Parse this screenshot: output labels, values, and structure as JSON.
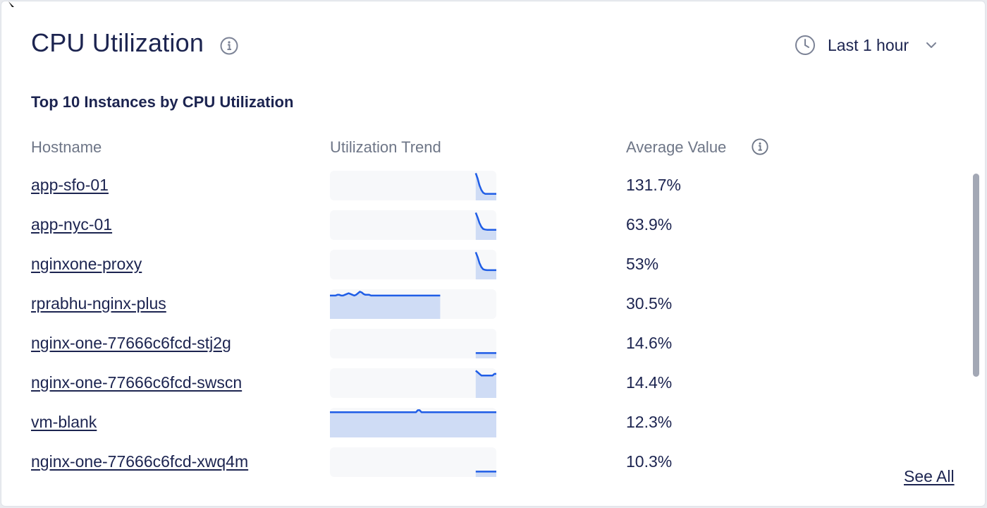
{
  "header": {
    "title": "CPU Utilization",
    "time_range": "Last 1 hour"
  },
  "section": {
    "subtitle": "Top 10 Instances by CPU Utilization"
  },
  "table": {
    "columns": [
      "Hostname",
      "Utilization Trend",
      "Average Value"
    ],
    "rows": [
      {
        "hostname": "app-sfo-01",
        "average": "131.7%",
        "trend": [
          null,
          null,
          null,
          null,
          null,
          null,
          null,
          null,
          null,
          null,
          null,
          null,
          null,
          null,
          null,
          null,
          null,
          null,
          null,
          null,
          null,
          null,
          null,
          null,
          null,
          null,
          null,
          null,
          null,
          null,
          null,
          null,
          null,
          null,
          null,
          null,
          null,
          null,
          null,
          null,
          null,
          null,
          null,
          null,
          null,
          null,
          null,
          null,
          null,
          null,
          null,
          null,
          null,
          null,
          null,
          null,
          null,
          null,
          null,
          null,
          null,
          null,
          null,
          null,
          null,
          null,
          null,
          null,
          null,
          null,
          null,
          null,
          null,
          null,
          null,
          null,
          null,
          null,
          100,
          80,
          55,
          38,
          28,
          24,
          24,
          24,
          24,
          24,
          24,
          24
        ]
      },
      {
        "hostname": "app-nyc-01",
        "average": "63.9%",
        "trend": [
          null,
          null,
          null,
          null,
          null,
          null,
          null,
          null,
          null,
          null,
          null,
          null,
          null,
          null,
          null,
          null,
          null,
          null,
          null,
          null,
          null,
          null,
          null,
          null,
          null,
          null,
          null,
          null,
          null,
          null,
          null,
          null,
          null,
          null,
          null,
          null,
          null,
          null,
          null,
          null,
          null,
          null,
          null,
          null,
          null,
          null,
          null,
          null,
          null,
          null,
          null,
          null,
          null,
          null,
          null,
          null,
          null,
          null,
          null,
          null,
          null,
          null,
          null,
          null,
          null,
          null,
          null,
          null,
          null,
          null,
          null,
          null,
          null,
          null,
          null,
          null,
          null,
          null,
          100,
          82,
          62,
          48,
          40,
          38,
          37,
          37,
          37,
          37,
          37,
          37
        ]
      },
      {
        "hostname": "nginxone-proxy",
        "average": "53%",
        "trend": [
          null,
          null,
          null,
          null,
          null,
          null,
          null,
          null,
          null,
          null,
          null,
          null,
          null,
          null,
          null,
          null,
          null,
          null,
          null,
          null,
          null,
          null,
          null,
          null,
          null,
          null,
          null,
          null,
          null,
          null,
          null,
          null,
          null,
          null,
          null,
          null,
          null,
          null,
          null,
          null,
          null,
          null,
          null,
          null,
          null,
          null,
          null,
          null,
          null,
          null,
          null,
          null,
          null,
          null,
          null,
          null,
          null,
          null,
          null,
          null,
          null,
          null,
          null,
          null,
          null,
          null,
          null,
          null,
          null,
          null,
          null,
          null,
          null,
          null,
          null,
          null,
          null,
          null,
          100,
          82,
          60,
          45,
          37,
          35,
          34,
          34,
          34,
          34,
          34,
          34
        ]
      },
      {
        "hostname": "rprabhu-nginx-plus",
        "average": "30.5%",
        "trend": [
          30,
          30,
          30,
          30,
          31,
          31,
          30,
          30,
          31,
          32,
          33,
          32,
          31,
          30,
          31,
          33,
          35,
          34,
          32,
          31,
          31,
          31,
          30,
          30,
          30,
          30,
          30,
          30,
          30,
          30,
          30,
          30,
          30,
          30,
          30,
          30,
          30,
          30,
          30,
          30,
          30,
          30,
          30,
          30,
          30,
          30,
          30,
          30,
          30,
          30,
          30,
          30,
          30,
          30,
          30,
          30,
          30,
          30,
          30,
          30,
          null,
          null,
          null,
          null,
          null,
          null,
          null,
          null,
          null,
          null,
          null,
          null,
          null,
          null,
          null,
          null,
          null,
          null,
          null,
          null,
          null,
          null,
          null,
          null,
          null,
          null,
          null,
          null,
          null,
          null
        ]
      },
      {
        "hostname": "nginx-one-77666c6fcd-stj2g",
        "average": "14.6%",
        "trend": [
          null,
          null,
          null,
          null,
          null,
          null,
          null,
          null,
          null,
          null,
          null,
          null,
          null,
          null,
          null,
          null,
          null,
          null,
          null,
          null,
          null,
          null,
          null,
          null,
          null,
          null,
          null,
          null,
          null,
          null,
          null,
          null,
          null,
          null,
          null,
          null,
          null,
          null,
          null,
          null,
          null,
          null,
          null,
          null,
          null,
          null,
          null,
          null,
          null,
          null,
          null,
          null,
          null,
          null,
          null,
          null,
          null,
          null,
          null,
          null,
          null,
          null,
          null,
          null,
          null,
          null,
          null,
          null,
          null,
          null,
          null,
          null,
          null,
          null,
          null,
          null,
          null,
          null,
          14,
          14,
          14,
          14,
          14,
          14,
          14,
          14,
          14,
          14,
          14,
          14
        ]
      },
      {
        "hostname": "nginx-one-77666c6fcd-swscn",
        "average": "14.4%",
        "trend": [
          null,
          null,
          null,
          null,
          null,
          null,
          null,
          null,
          null,
          null,
          null,
          null,
          null,
          null,
          null,
          null,
          null,
          null,
          null,
          null,
          null,
          null,
          null,
          null,
          null,
          null,
          null,
          null,
          null,
          null,
          null,
          null,
          null,
          null,
          null,
          null,
          null,
          null,
          null,
          null,
          null,
          null,
          null,
          null,
          null,
          null,
          null,
          null,
          null,
          null,
          null,
          null,
          null,
          null,
          null,
          null,
          null,
          null,
          null,
          null,
          null,
          null,
          null,
          null,
          null,
          null,
          null,
          null,
          null,
          null,
          null,
          null,
          null,
          null,
          null,
          null,
          null,
          null,
          17,
          16,
          15,
          14,
          14,
          14,
          14,
          14,
          14,
          14,
          15,
          15
        ]
      },
      {
        "hostname": "vm-blank",
        "average": "12.3%",
        "trend": [
          12,
          12,
          12,
          12,
          12,
          12,
          12,
          12,
          12,
          12,
          12,
          12,
          12,
          12,
          12,
          12,
          12,
          12,
          12,
          12,
          12,
          12,
          12,
          12,
          12,
          12,
          12,
          12,
          12,
          12,
          12,
          12,
          12,
          12,
          12,
          12,
          12,
          12,
          12,
          12,
          12,
          12,
          12,
          12,
          12,
          12,
          12,
          13,
          13,
          12,
          12,
          12,
          12,
          12,
          12,
          12,
          12,
          12,
          12,
          12,
          12,
          12,
          12,
          12,
          12,
          12,
          12,
          12,
          12,
          12,
          12,
          12,
          12,
          12,
          12,
          12,
          12,
          12,
          12,
          12,
          12,
          12,
          12,
          12,
          12,
          12,
          12,
          12,
          12,
          12
        ]
      },
      {
        "hostname": "nginx-one-77666c6fcd-xwq4m",
        "average": "10.3%",
        "trend": [
          null,
          null,
          null,
          null,
          null,
          null,
          null,
          null,
          null,
          null,
          null,
          null,
          null,
          null,
          null,
          null,
          null,
          null,
          null,
          null,
          null,
          null,
          null,
          null,
          null,
          null,
          null,
          null,
          null,
          null,
          null,
          null,
          null,
          null,
          null,
          null,
          null,
          null,
          null,
          null,
          null,
          null,
          null,
          null,
          null,
          null,
          null,
          null,
          null,
          null,
          null,
          null,
          null,
          null,
          null,
          null,
          null,
          null,
          null,
          null,
          null,
          null,
          null,
          null,
          null,
          null,
          null,
          null,
          null,
          null,
          null,
          null,
          null,
          null,
          null,
          null,
          null,
          null,
          10,
          10,
          10,
          10,
          10,
          10,
          10,
          10,
          10,
          10,
          10,
          10
        ]
      }
    ]
  },
  "footer": {
    "see_all": "See All"
  },
  "colors": {
    "line": "#1f5de6",
    "fill": "#cfdcf5",
    "track": "#f7f8fa",
    "text": "#1c2450",
    "muted": "#6e7687"
  },
  "icons": {
    "title_info": "info-circle-icon",
    "time": "clock-icon",
    "dropdown": "chevron-down-icon",
    "avg_info": "info-circle-icon"
  }
}
